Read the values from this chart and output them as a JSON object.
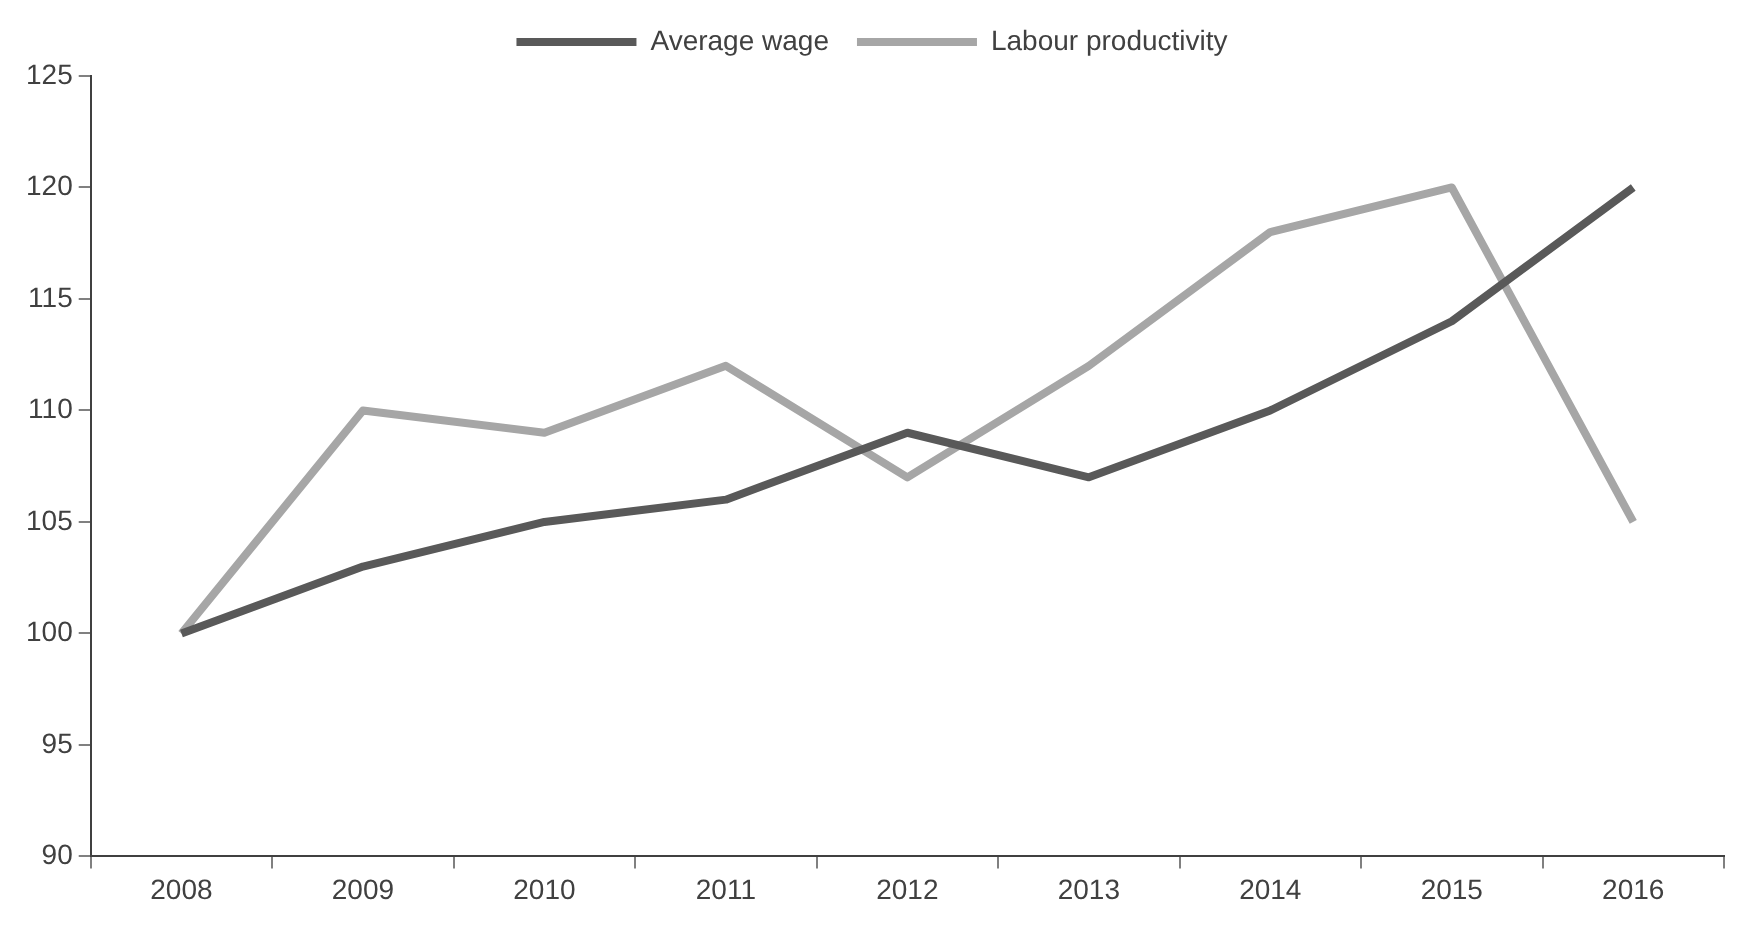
{
  "chart_data": {
    "type": "line",
    "categories": [
      "2008",
      "2009",
      "2010",
      "2011",
      "2012",
      "2013",
      "2014",
      "2015",
      "2016"
    ],
    "series": [
      {
        "name": "Average wage",
        "color": "#595959",
        "values": [
          100,
          103,
          105,
          106,
          109,
          107,
          110,
          114,
          120
        ]
      },
      {
        "name": "Labour productivity",
        "color": "#a6a6a6",
        "values": [
          100,
          110,
          109,
          112,
          107,
          112,
          118,
          120,
          105
        ]
      }
    ],
    "ylim": [
      90,
      125
    ],
    "yticks": [
      90,
      95,
      100,
      105,
      110,
      115,
      120,
      125
    ],
    "grid": false,
    "legend": "top",
    "marker": "none",
    "line_style": "solid"
  }
}
